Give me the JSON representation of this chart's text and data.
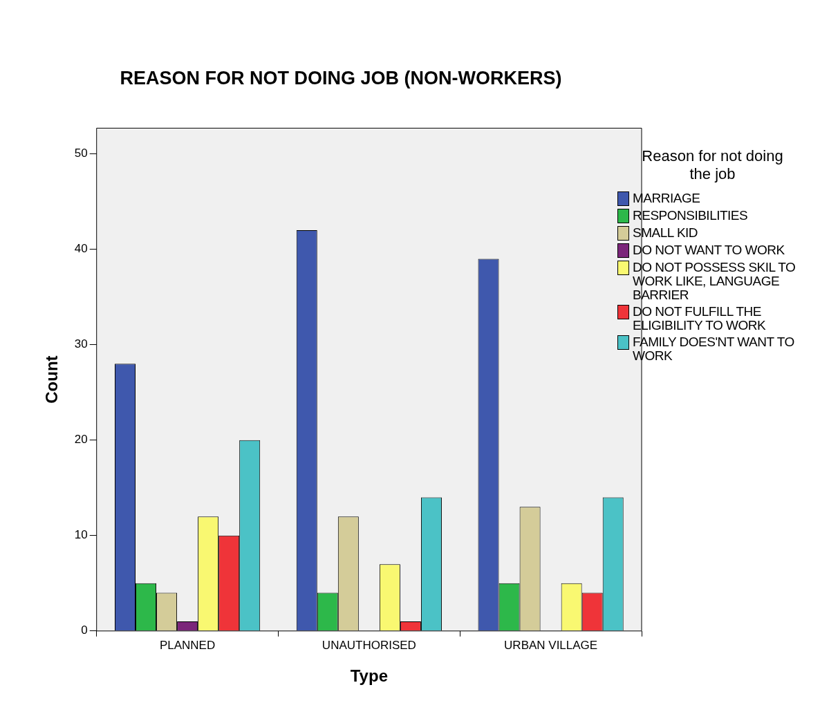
{
  "chart_data": {
    "type": "bar",
    "title": "REASON FOR NOT DOING JOB (NON-WORKERS)",
    "xlabel": "Type",
    "ylabel": "Count",
    "legend_title": "Reason for not doing the job",
    "categories": [
      "PLANNED",
      "UNAUTHORISED",
      "URBAN VILLAGE"
    ],
    "series": [
      {
        "name": "MARRIAGE",
        "color": "#3f58ad",
        "values": [
          28,
          42,
          39
        ]
      },
      {
        "name": "RESPONSIBILITIES",
        "color": "#2db84a",
        "values": [
          5,
          4,
          5
        ]
      },
      {
        "name": "SMALL KID",
        "color": "#d4cc99",
        "values": [
          4,
          12,
          13
        ]
      },
      {
        "name": "DO NOT WANT TO WORK",
        "color": "#7b267a",
        "values": [
          1,
          0,
          0
        ]
      },
      {
        "name": "DO NOT POSSESS SKIL TO WORK LIKE, LANGUAGE BARRIER",
        "color": "#f9f871",
        "values": [
          12,
          7,
          5
        ]
      },
      {
        "name": "DO NOT FULFILL THE ELIGIBILITY TO WORK",
        "color": "#ef3439",
        "values": [
          10,
          1,
          4
        ]
      },
      {
        "name": "FAMILY DOES'NT WANT TO WORK",
        "color": "#4bc2c6",
        "values": [
          20,
          14,
          14
        ]
      }
    ],
    "ylim": [
      0,
      52.7
    ],
    "yticks": [
      0,
      10,
      20,
      30,
      40,
      50
    ],
    "grid": false,
    "legend": "right"
  }
}
